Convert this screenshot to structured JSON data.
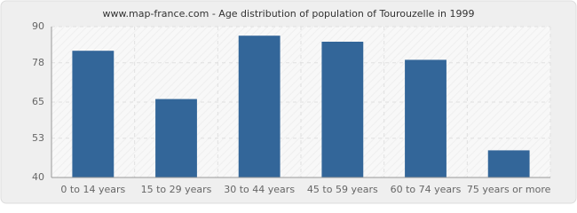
{
  "chart_data": {
    "type": "bar",
    "title": "www.map-france.com - Age distribution of population of Tourouzelle in 1999",
    "categories": [
      "0 to 14 years",
      "15 to 29 years",
      "30 to 44 years",
      "45 to 59 years",
      "60 to 74 years",
      "75 years or more"
    ],
    "values": [
      82,
      66,
      87,
      85,
      79,
      49
    ],
    "color": "#336699",
    "ylim": [
      40,
      90
    ],
    "yticks": [
      40,
      53,
      65,
      78,
      90
    ],
    "grid": true
  }
}
